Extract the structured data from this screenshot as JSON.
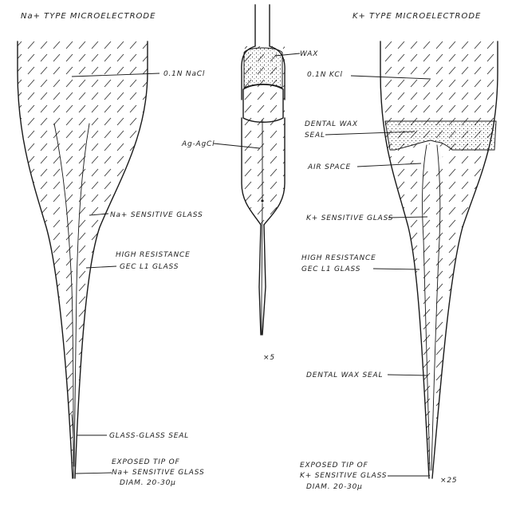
{
  "figure": {
    "na_electrode": {
      "title": "Na+ TYPE MICROELECTRODE",
      "solution": "0.1N NaCl",
      "sensitive_glass": "Na+ SENSITIVE GLASS",
      "high_resistance": "HIGH RESISTANCE",
      "gec_glass": "GEC L1 GLASS",
      "seal": "GLASS-GLASS SEAL",
      "tip_line1": "EXPOSED TIP OF",
      "tip_line2": "Na+ SENSITIVE GLASS",
      "tip_line3": "DIAM. 20-30μ"
    },
    "center_electrode": {
      "wax": "WAX",
      "electrode": "Ag-AgCl",
      "scale": "×5"
    },
    "k_electrode": {
      "title": "K+ TYPE MICROELECTRODE",
      "solution": "0.1N KCl",
      "dental_wax_line1": "DENTAL WAX",
      "dental_wax_line2": "SEAL",
      "air_space": "AIR SPACE",
      "sensitive_glass": "K+ SENSITIVE GLASS",
      "high_resistance": "HIGH RESISTANCE",
      "gec_glass": "GEC L1 GLASS",
      "wax_seal": "DENTAL WAX SEAL",
      "tip_line1": "EXPOSED TIP OF",
      "tip_line2": "K+ SENSITIVE GLASS",
      "tip_line3": "DIAM. 20-30μ",
      "scale": "×25"
    }
  }
}
